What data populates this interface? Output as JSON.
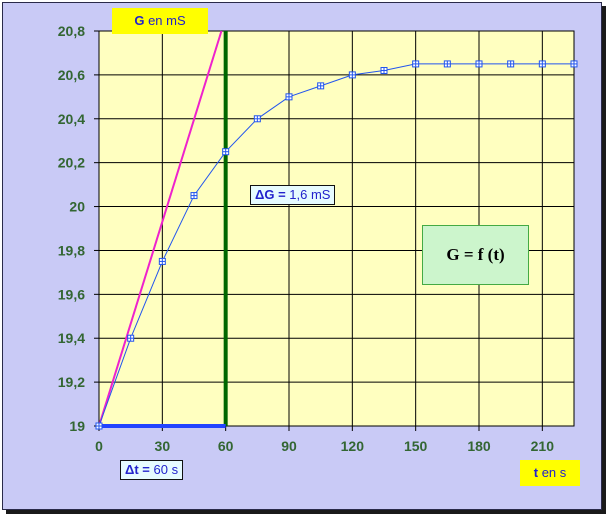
{
  "chart_data": {
    "type": "line",
    "x": [
      0,
      15,
      30,
      45,
      60,
      75,
      90,
      105,
      120,
      135,
      150,
      165,
      180,
      195,
      210,
      225
    ],
    "series": [
      {
        "values": [
          19.0,
          19.4,
          19.75,
          20.05,
          20.25,
          20.4,
          20.5,
          20.55,
          20.6,
          20.62,
          20.65,
          20.65,
          20.65,
          20.65,
          20.65,
          20.65
        ]
      }
    ],
    "tangent": {
      "x": [
        0,
        58
      ],
      "y": [
        19.0,
        20.8
      ]
    },
    "vertical_marker_x": 60,
    "delta_t_segment": [
      0,
      60
    ],
    "xlim": [
      0,
      225
    ],
    "ylim": [
      19,
      20.8
    ],
    "x_ticks": [
      "0",
      "30",
      "60",
      "90",
      "120",
      "150",
      "180",
      "210"
    ],
    "y_ticks": [
      "19",
      "19,2",
      "19,4",
      "19,6",
      "19,8",
      "20",
      "20,2",
      "20,4",
      "20,6",
      "20,8"
    ],
    "grid": true,
    "ylabel": {
      "bold": "G",
      "rest": " en mS"
    },
    "xlabel": {
      "bold": "t",
      "rest": " en s"
    },
    "annotations": {
      "delta_g": {
        "bold": "ΔG =",
        "rest": " 1,6 mS"
      },
      "delta_t": {
        "bold": "Δt =",
        "rest": " 60 s"
      },
      "equation": "G = f (t)"
    },
    "colors": {
      "background": "#c9caf6",
      "plot_area": "#ffffc0",
      "curve": "#2255ee",
      "tangent": "#ee22cc",
      "vertical_marker": "#006600",
      "delta_t_segment": "#2244ff",
      "tick_labels": "#336633"
    }
  }
}
